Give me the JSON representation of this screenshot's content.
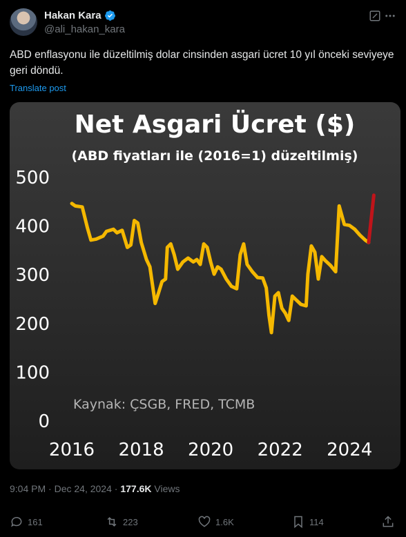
{
  "author": {
    "name": "Hakan Kara",
    "handle": "@ali_hakan_kara"
  },
  "tweet": {
    "text": "ABD enflasyonu ile düzeltilmiş dolar cinsinden asgari ücret 10 yıl önceki seviyeye geri döndü.",
    "translate_label": "Translate post"
  },
  "meta": {
    "time": "9:04 PM",
    "date": "Dec 24, 2024",
    "views_count": "177.6K",
    "views_label": "Views"
  },
  "actions": {
    "replies": "161",
    "reposts": "223",
    "likes": "1.6K",
    "bookmarks": "114"
  },
  "colors": {
    "accent": "#1d9bf0",
    "line": "#f5b800",
    "highlight": "#c0141a"
  },
  "chart_data": {
    "type": "line",
    "title": "Net Asgari Ücret ($)",
    "subtitle": "(ABD fiyatları ile (2016=1) düzeltilmiş)",
    "source": "Kaynak: ÇSGB, FRED, TCMB",
    "xlabel": "",
    "ylabel": "",
    "x_ticks": [
      "2016",
      "2018",
      "2020",
      "2022",
      "2024"
    ],
    "y_ticks": [
      "0",
      "100",
      "200",
      "300",
      "400",
      "500"
    ],
    "xlim": [
      2016,
      2024.95
    ],
    "ylim": [
      0,
      500
    ],
    "series": [
      {
        "color": "#f5b800",
        "points": [
          [
            2016.0,
            445
          ],
          [
            2016.1,
            440
          ],
          [
            2016.3,
            438
          ],
          [
            2016.45,
            395
          ],
          [
            2016.55,
            370
          ],
          [
            2016.7,
            372
          ],
          [
            2016.9,
            378
          ],
          [
            2017.0,
            388
          ],
          [
            2017.2,
            392
          ],
          [
            2017.3,
            385
          ],
          [
            2017.45,
            390
          ],
          [
            2017.6,
            355
          ],
          [
            2017.7,
            360
          ],
          [
            2017.8,
            410
          ],
          [
            2017.9,
            405
          ],
          [
            2018.0,
            365
          ],
          [
            2018.15,
            330
          ],
          [
            2018.25,
            315
          ],
          [
            2018.4,
            240
          ],
          [
            2018.5,
            262
          ],
          [
            2018.6,
            285
          ],
          [
            2018.7,
            290
          ],
          [
            2018.75,
            355
          ],
          [
            2018.85,
            362
          ],
          [
            2018.95,
            340
          ],
          [
            2019.05,
            310
          ],
          [
            2019.2,
            325
          ],
          [
            2019.35,
            333
          ],
          [
            2019.5,
            325
          ],
          [
            2019.6,
            330
          ],
          [
            2019.7,
            320
          ],
          [
            2019.8,
            362
          ],
          [
            2019.9,
            355
          ],
          [
            2020.0,
            325
          ],
          [
            2020.1,
            300
          ],
          [
            2020.2,
            315
          ],
          [
            2020.3,
            310
          ],
          [
            2020.45,
            290
          ],
          [
            2020.6,
            275
          ],
          [
            2020.75,
            270
          ],
          [
            2020.85,
            340
          ],
          [
            2020.95,
            362
          ],
          [
            2021.05,
            320
          ],
          [
            2021.2,
            305
          ],
          [
            2021.35,
            293
          ],
          [
            2021.5,
            292
          ],
          [
            2021.6,
            272
          ],
          [
            2021.68,
            215
          ],
          [
            2021.75,
            180
          ],
          [
            2021.85,
            255
          ],
          [
            2021.95,
            262
          ],
          [
            2022.05,
            230
          ],
          [
            2022.15,
            220
          ],
          [
            2022.25,
            205
          ],
          [
            2022.35,
            255
          ],
          [
            2022.45,
            248
          ],
          [
            2022.6,
            238
          ],
          [
            2022.75,
            235
          ],
          [
            2022.8,
            300
          ],
          [
            2022.9,
            358
          ],
          [
            2023.0,
            345
          ],
          [
            2023.1,
            290
          ],
          [
            2023.2,
            336
          ],
          [
            2023.3,
            328
          ],
          [
            2023.45,
            318
          ],
          [
            2023.6,
            305
          ],
          [
            2023.7,
            440
          ],
          [
            2023.85,
            402
          ],
          [
            2024.0,
            400
          ],
          [
            2024.15,
            392
          ],
          [
            2024.3,
            380
          ],
          [
            2024.45,
            370
          ],
          [
            2024.55,
            365
          ]
        ]
      },
      {
        "color": "#c0141a",
        "points": [
          [
            2024.55,
            365
          ],
          [
            2024.7,
            462
          ]
        ]
      }
    ],
    "grid": false,
    "legend": "none"
  }
}
